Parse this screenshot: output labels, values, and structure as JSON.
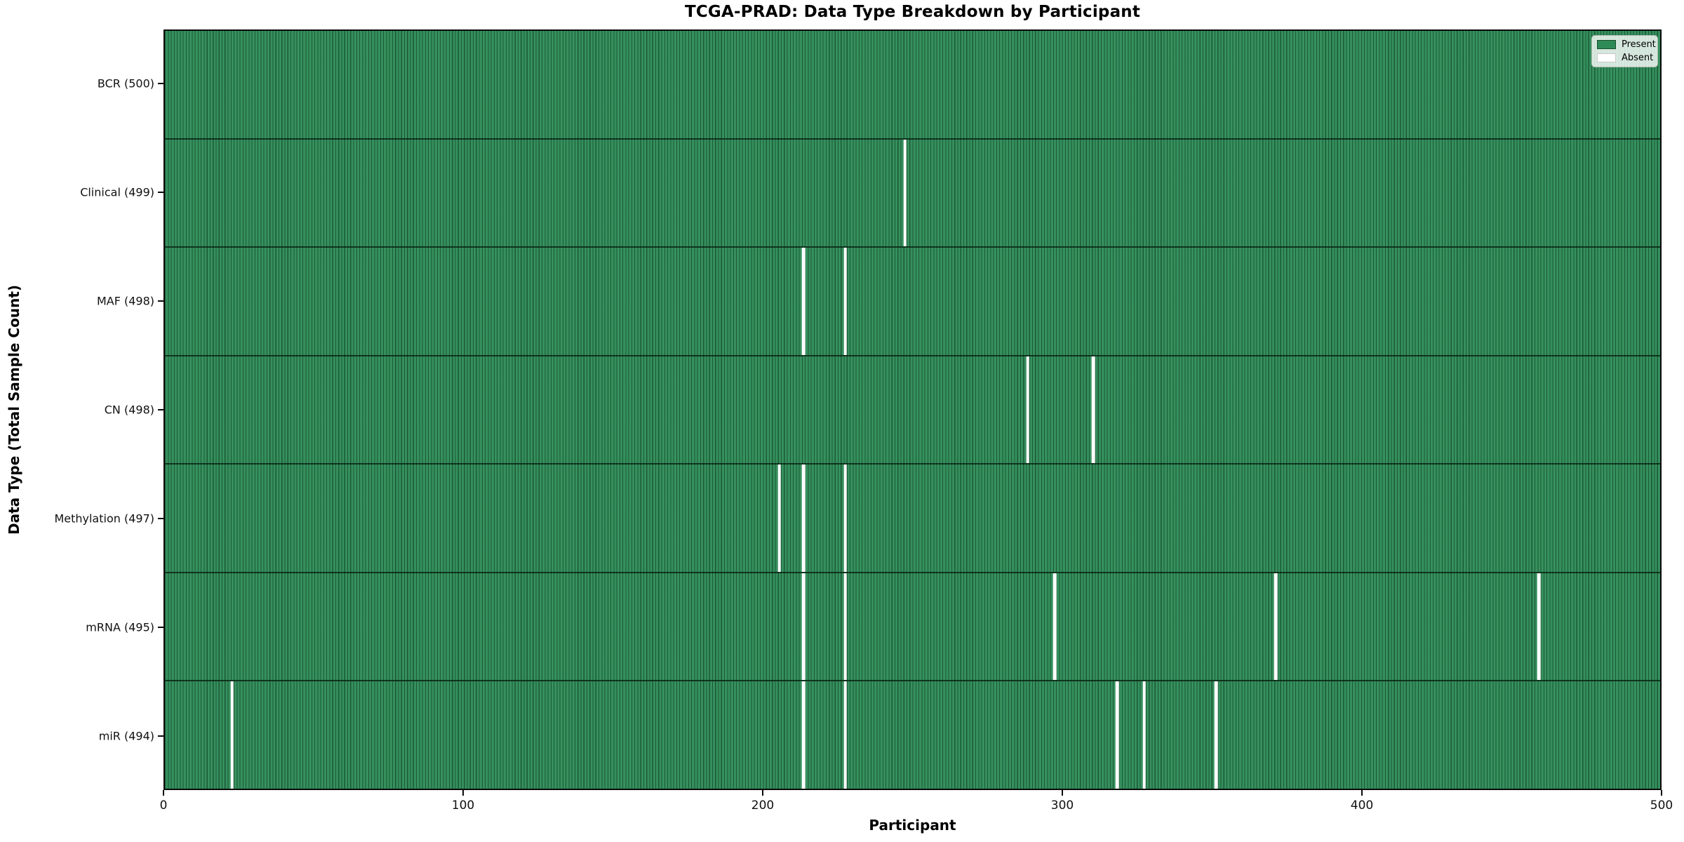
{
  "chart_data": {
    "type": "heatmap",
    "title": "TCGA-PRAD: Data Type Breakdown by Participant",
    "xlabel": "Participant",
    "ylabel": "Data Type (Total Sample Count)",
    "xlim": [
      0,
      500
    ],
    "n_participants": 500,
    "x_ticks": [
      0,
      100,
      200,
      300,
      400,
      500
    ],
    "grid": false,
    "legend": {
      "position": "upper right",
      "entries": [
        {
          "label": "Present",
          "color": "#2e8b57"
        },
        {
          "label": "Absent",
          "color": "#ffffff"
        }
      ]
    },
    "colors": {
      "present": "#2e8b57",
      "absent": "#ffffff",
      "bar_edge": "#1b4d2e"
    },
    "rows": [
      {
        "label": "BCR (500)",
        "data_type": "BCR",
        "total": 500,
        "absent_participants": []
      },
      {
        "label": "Clinical (499)",
        "data_type": "Clinical",
        "total": 499,
        "absent_participants": [
          247
        ]
      },
      {
        "label": "MAF (498)",
        "data_type": "MAF",
        "total": 498,
        "absent_participants": [
          213,
          227
        ]
      },
      {
        "label": "CN (498)",
        "data_type": "CN",
        "total": 498,
        "absent_participants": [
          288,
          310
        ]
      },
      {
        "label": "Methylation (497)",
        "data_type": "Methylation",
        "total": 497,
        "absent_participants": [
          205,
          213,
          227
        ]
      },
      {
        "label": "mRNA (495)",
        "data_type": "mRNA",
        "total": 495,
        "absent_participants": [
          213,
          227,
          297,
          371,
          459
        ]
      },
      {
        "label": "miR (494)",
        "data_type": "miR",
        "total": 494,
        "absent_participants": [
          22,
          213,
          227,
          318,
          327,
          351
        ]
      }
    ]
  }
}
